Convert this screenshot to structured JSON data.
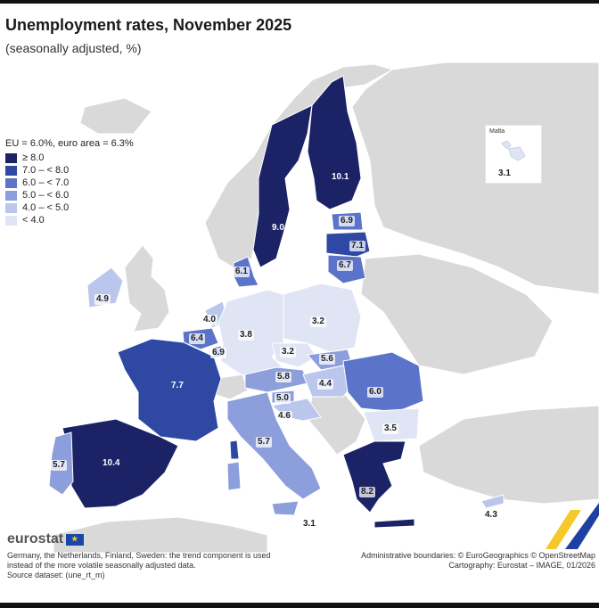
{
  "title": "Unemployment rates, November 2025",
  "subtitle": "(seasonally adjusted, %)",
  "legend": {
    "heading": "EU = 6.0%, euro area = 6.3%",
    "classes": [
      {
        "label": "≥ 8.0",
        "color": "#1b2366"
      },
      {
        "label": "7.0 – < 8.0",
        "color": "#2f48a3"
      },
      {
        "label": "6.0 – < 7.0",
        "color": "#5b74c9"
      },
      {
        "label": "5.0 – < 6.0",
        "color": "#8c9edb"
      },
      {
        "label": "4.0 – < 5.0",
        "color": "#bac6eb"
      },
      {
        "label": "< 4.0",
        "color": "#e0e5f6"
      }
    ]
  },
  "inset": {
    "name": "Malta",
    "value": "3.1"
  },
  "values": {
    "finland": "10.1",
    "sweden": "9.0",
    "estonia": "6.9",
    "latvia": "7.1",
    "lithuania": "6.7",
    "denmark": "6.1",
    "ireland": "4.9",
    "netherlands": "4.0",
    "belgium": "6.4",
    "luxembourg": "6.9",
    "germany": "3.8",
    "poland": "3.2",
    "czechia": "3.2",
    "slovakia": "5.6",
    "austria": "5.8",
    "hungary": "4.4",
    "slovenia": "5.0",
    "croatia": "4.6",
    "romania": "6.0",
    "bulgaria": "3.5",
    "france": "7.7",
    "spain": "10.4",
    "portugal": "5.7",
    "italy": "5.7",
    "greece": "8.2",
    "cyprus": "4.3",
    "malta_main": "3.1"
  },
  "logo_text": "eurostat",
  "footnote_lines": [
    "Germany, the Netherlands, Finland, Sweden: the trend component is used",
    "instead of the more volatile seasonally adjusted data.",
    "Source dataset: (une_rt_m)"
  ],
  "credit_lines": [
    "Administrative boundaries: © EuroGeographics © OpenStreetMap",
    "Cartography: Eurostat – IMAGE, 01/2026"
  ]
}
